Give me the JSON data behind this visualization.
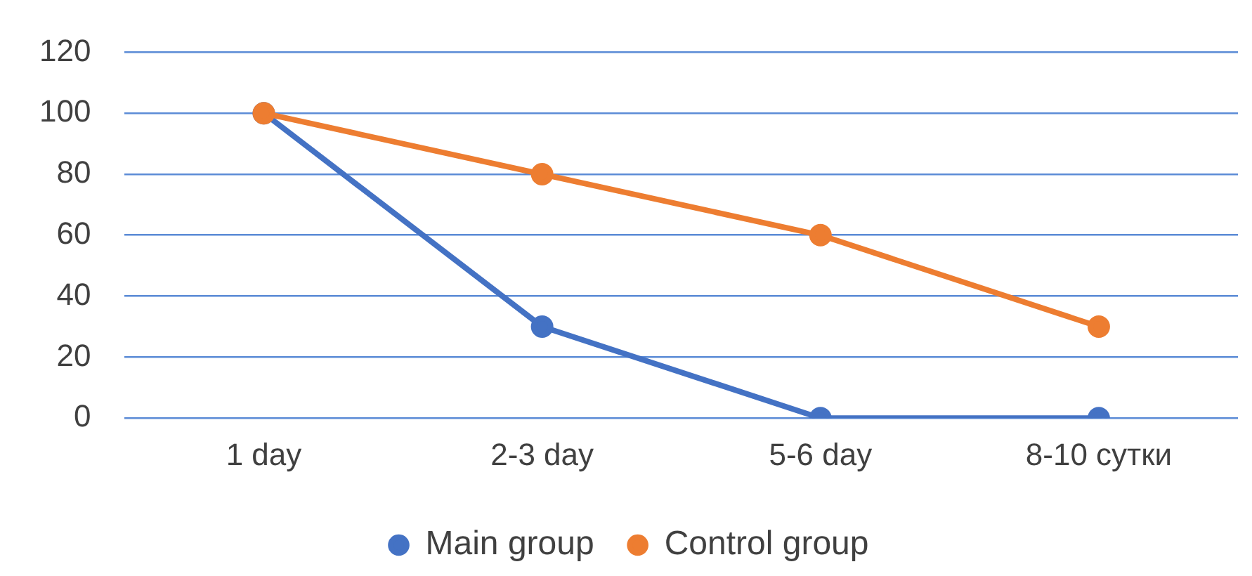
{
  "chart_data": {
    "type": "line",
    "categories": [
      "1 day",
      "2-3 day",
      "5-6 day",
      "8-10 сутки"
    ],
    "series": [
      {
        "name": "Main group",
        "color": "#4472c4",
        "values": [
          100,
          30,
          0,
          0
        ]
      },
      {
        "name": "Control group",
        "color": "#ed7d31",
        "values": [
          100,
          80,
          60,
          30
        ]
      }
    ],
    "ylim": [
      0,
      120
    ],
    "yticks": [
      0,
      20,
      40,
      60,
      80,
      100,
      120
    ],
    "grid": "y",
    "legend": "bottom",
    "marker": "circle",
    "line_style": "solid"
  }
}
